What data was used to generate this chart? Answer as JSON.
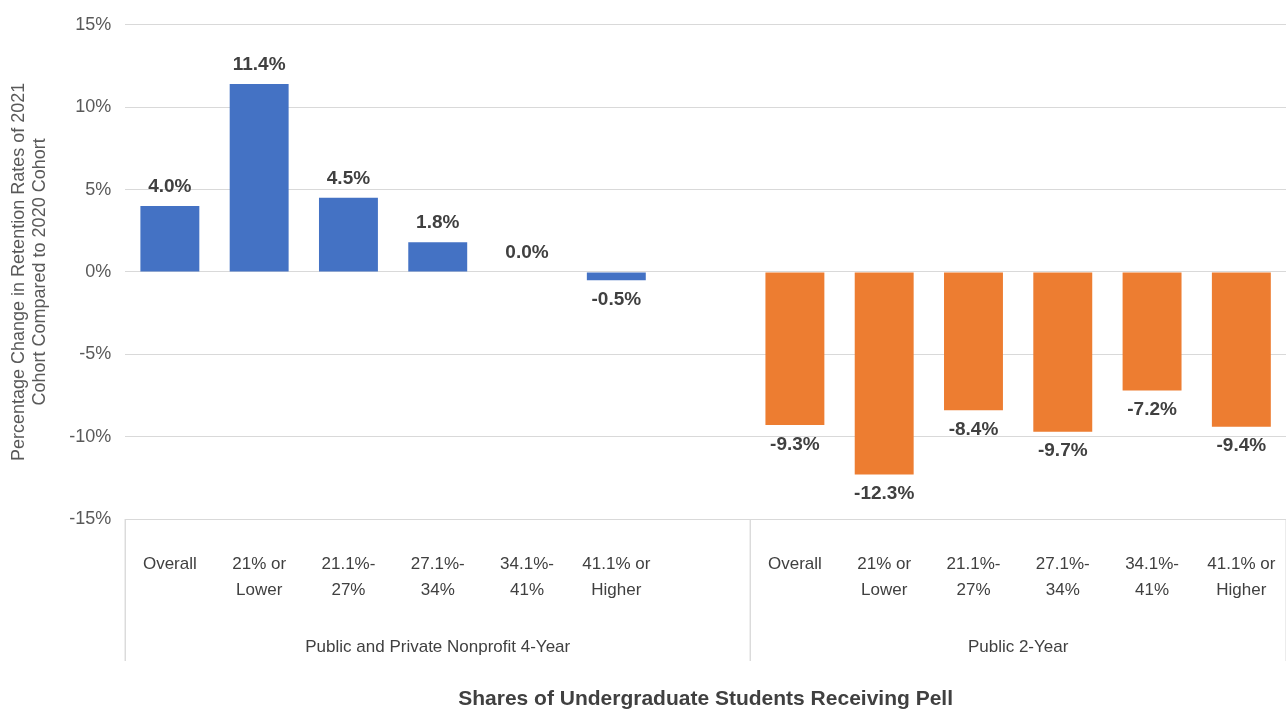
{
  "chart_data": {
    "type": "bar",
    "xlabel": "Shares of Undergraduate Students Receiving Pell",
    "ylabel": "Percentage Change in Retention Rates of 2021 Cohort Compared to 2020 Cohort",
    "categories": [
      "Overall",
      "21% or Lower",
      "21.1%-27%",
      "27.1%-34%",
      "34.1%-41%",
      "41.1% or Higher",
      null,
      "Overall",
      "21% or Lower",
      "21.1%-27%",
      "27.1%-34%",
      "34.1%-41%",
      "41.1% or Higher"
    ],
    "series": [
      {
        "color": "#4472c4",
        "values": [
          4.0,
          11.4,
          4.5,
          1.8,
          0.0,
          -0.5,
          null,
          null,
          null,
          null,
          null,
          null,
          null
        ],
        "value_labels": [
          "4.0%",
          "11.4%",
          "4.5%",
          "1.8%",
          "0.0%",
          "-0.5%",
          null,
          null,
          null,
          null,
          null,
          null,
          null
        ]
      },
      {
        "color": "#ed7d31",
        "values": [
          null,
          null,
          null,
          null,
          null,
          null,
          null,
          -9.3,
          -12.3,
          -8.4,
          -9.7,
          -7.2,
          -9.4
        ],
        "value_labels": [
          null,
          null,
          null,
          null,
          null,
          null,
          null,
          "-9.3%",
          "-12.3%",
          "-8.4%",
          "-9.7%",
          "-7.2%",
          "-9.4%"
        ]
      }
    ],
    "annotations": [
      "Public and Private Nonprofit 4-Year",
      "Public 2-Year"
    ],
    "ylim": [
      -15,
      15
    ],
    "yticks": [
      {
        "value": -15,
        "label": "-15%"
      },
      {
        "value": -10,
        "label": "-10%"
      },
      {
        "value": -5,
        "label": "-5%"
      },
      {
        "value": 0,
        "label": "0%"
      },
      {
        "value": 5,
        "label": "5%"
      },
      {
        "value": 10,
        "label": "10%"
      },
      {
        "value": 15,
        "label": "15%"
      }
    ],
    "grid": "y",
    "legend": false
  }
}
